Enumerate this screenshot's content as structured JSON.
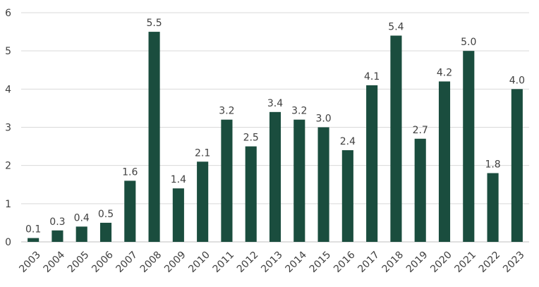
{
  "chart_data": {
    "type": "bar",
    "title": "",
    "xlabel": "",
    "ylabel": "",
    "ylim": [
      0,
      6
    ],
    "yticks": [
      0,
      1,
      2,
      3,
      4,
      5,
      6
    ],
    "grid": true,
    "bar_color": "#1a4d3e",
    "categories": [
      "2003",
      "2004",
      "2005",
      "2006",
      "2007",
      "2008",
      "2009",
      "2010",
      "2011",
      "2012",
      "2013",
      "2014",
      "2015",
      "2016",
      "2017",
      "2018",
      "2019",
      "2020",
      "2021",
      "2022",
      "2023"
    ],
    "values": [
      0.1,
      0.3,
      0.4,
      0.5,
      1.6,
      5.5,
      1.4,
      2.1,
      3.2,
      2.5,
      3.4,
      3.2,
      3.0,
      2.4,
      4.1,
      5.4,
      2.7,
      4.2,
      5.0,
      1.8,
      4.0
    ],
    "data_labels": [
      "0.1",
      "0.3",
      "0.4",
      "0.5",
      "1.6",
      "5.5",
      "1.4",
      "2.1",
      "3.2",
      "2.5",
      "3.4",
      "3.2",
      "3.0",
      "2.4",
      "4.1",
      "5.4",
      "2.7",
      "4.2",
      "5.0",
      "1.8",
      "4.0"
    ]
  }
}
